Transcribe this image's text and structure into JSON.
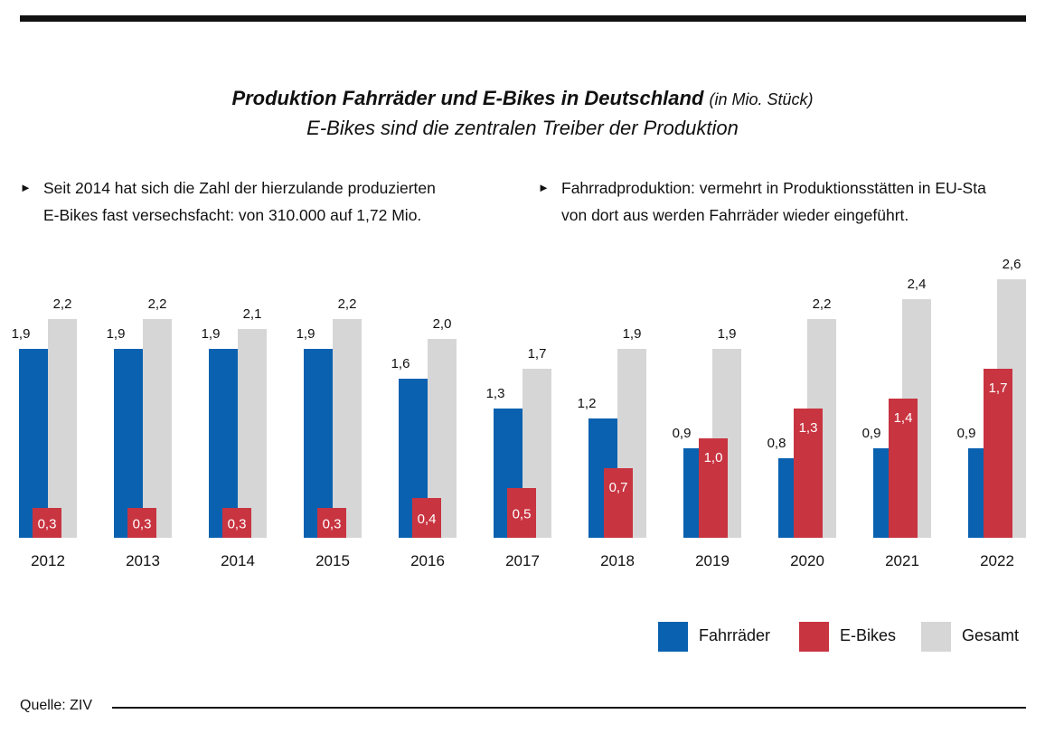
{
  "title": {
    "main": "Produktion Fahrräder und E-Bikes in Deutschland",
    "unit": "(in Mio. Stück)",
    "subtitle": "E-Bikes sind die zentralen Treiber der Produktion"
  },
  "notes": [
    {
      "line1": "Seit 2014 hat sich die Zahl der hierzulande produzierten",
      "line2": "E-Bikes fast versechsfacht: von 310.000 auf 1,72 Mio."
    },
    {
      "line1": "Fahrradproduktion: vermehrt in Produktionsstätten in EU-Sta",
      "line2": "von dort aus werden Fahrräder wieder eingeführt."
    }
  ],
  "icons": {
    "bullet": "triangle-right-icon"
  },
  "colors": {
    "fahrraeder": "#0a61b0",
    "ebikes": "#c83440",
    "gesamt": "#d6d6d6",
    "text": "#111111"
  },
  "chart_data": {
    "type": "bar",
    "title": "Produktion Fahrräder und E-Bikes in Deutschland (in Mio. Stück)",
    "xlabel": "",
    "ylabel": "Mio. Stück",
    "ylim": [
      0,
      2.6
    ],
    "grid": false,
    "legend_position": "bottom-right",
    "categories": [
      "2012",
      "2013",
      "2014",
      "2015",
      "2016",
      "2017",
      "2018",
      "2019",
      "2020",
      "2021",
      "2022"
    ],
    "series": [
      {
        "name": "Fahrräder",
        "values": [
          1.9,
          1.9,
          1.9,
          1.9,
          1.6,
          1.3,
          1.2,
          0.9,
          0.8,
          0.9,
          0.9
        ],
        "labels": [
          "1,9",
          "1,9",
          "1,9",
          "1,9",
          "1,6",
          "1,3",
          "1,2",
          "0,9",
          "0,8",
          "0,9",
          "0,9"
        ]
      },
      {
        "name": "E-Bikes",
        "values": [
          0.3,
          0.3,
          0.3,
          0.3,
          0.4,
          0.5,
          0.7,
          1.0,
          1.3,
          1.4,
          1.7
        ],
        "labels": [
          "0,3",
          "0,3",
          "0,3",
          "0,3",
          "0,4",
          "0,5",
          "0,7",
          "1,0",
          "1,3",
          "1,4",
          "1,7"
        ]
      },
      {
        "name": "Gesamt",
        "values": [
          2.2,
          2.2,
          2.1,
          2.2,
          2.0,
          1.7,
          1.9,
          1.9,
          2.2,
          2.4,
          2.6
        ],
        "labels": [
          "2,2",
          "2,2",
          "2,1",
          "2,2",
          "2,0",
          "1,7",
          "1,9",
          "1,9",
          "2,2",
          "2,4",
          "2,6"
        ]
      }
    ]
  },
  "legend": [
    {
      "label": "Fahrräder",
      "color": "#0a61b0"
    },
    {
      "label": "E-Bikes",
      "color": "#c83440"
    },
    {
      "label": "Gesamt",
      "color": "#d6d6d6"
    }
  ],
  "source": "Quelle: ZIV"
}
